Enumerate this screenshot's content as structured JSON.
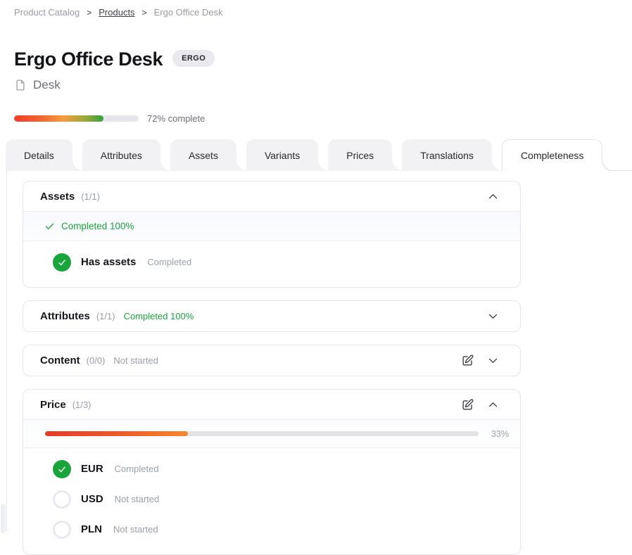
{
  "breadcrumb": {
    "separator": ">",
    "items": [
      {
        "label": "Product Catalog"
      },
      {
        "label": "Products"
      },
      {
        "label": "Ergo Office Desk"
      }
    ]
  },
  "header": {
    "title": "Ergo Office Desk",
    "badge": "ERGO",
    "family": "Desk",
    "progress": {
      "percent": 72,
      "label": "72% complete"
    }
  },
  "tabs": [
    {
      "label": "Details",
      "active": false
    },
    {
      "label": "Attributes",
      "active": false
    },
    {
      "label": "Assets",
      "active": false
    },
    {
      "label": "Variants",
      "active": false
    },
    {
      "label": "Prices",
      "active": false
    },
    {
      "label": "Translations",
      "active": false
    },
    {
      "label": "Completeness",
      "active": true
    }
  ],
  "sections": {
    "assets": {
      "title": "Assets",
      "count": "(1/1)",
      "expanded": true,
      "summary": "Completed 100%",
      "rows": [
        {
          "label": "Has assets",
          "status": "Completed",
          "state": "completed"
        }
      ]
    },
    "attributes": {
      "title": "Attributes",
      "count": "(1/1)",
      "expanded": false,
      "status": "Completed 100%"
    },
    "content": {
      "title": "Content",
      "count": "(0/0)",
      "expanded": false,
      "status": "Not started"
    },
    "price": {
      "title": "Price",
      "count": "(1/3)",
      "expanded": true,
      "progress": {
        "percent": 33,
        "label": "33%"
      },
      "rows": [
        {
          "label": "EUR",
          "status": "Completed",
          "state": "completed"
        },
        {
          "label": "USD",
          "status": "Not started",
          "state": "not_started"
        },
        {
          "label": "PLN",
          "status": "Not started",
          "state": "not_started"
        }
      ]
    }
  },
  "colors": {
    "success_green": "#18a53a",
    "progress_red": "#f43b2b",
    "progress_orange": "#f7953a",
    "progress_green": "#31a23c",
    "track_gray": "#e6e6ea",
    "badge_bg": "#e9e9ee",
    "border": "#e5e5ea"
  }
}
